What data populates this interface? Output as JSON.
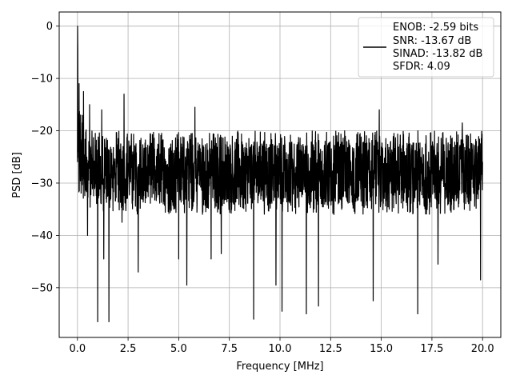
{
  "chart_data": {
    "type": "line",
    "title": "",
    "xlabel": "Frequency [MHz]",
    "ylabel": "PSD [dB]",
    "xlim": [
      -0.9,
      20.9
    ],
    "ylim": [
      -59.5,
      2.7
    ],
    "x_ticks": [
      0.0,
      2.5,
      5.0,
      7.5,
      10.0,
      12.5,
      15.0,
      17.5,
      20.0
    ],
    "x_tick_labels": [
      "0.0",
      "2.5",
      "5.0",
      "7.5",
      "10.0",
      "12.5",
      "15.0",
      "17.5",
      "20.0"
    ],
    "y_ticks": [
      0,
      -10,
      -20,
      -30,
      -40,
      -50
    ],
    "y_tick_labels": [
      "0",
      "−10",
      "−20",
      "−30",
      "−40",
      "−50"
    ],
    "grid": true,
    "legend_position": "top-right",
    "legend_lines": [
      "ENOB: -2.59 bits",
      "SNR: -13.67 dB",
      "SINAD: -13.82 dB",
      "SFDR: 4.09"
    ],
    "line_color": "#000000",
    "series": [
      {
        "label_lines": [
          "ENOB: -2.59 bits",
          "SNR: -13.67 dB",
          "SINAD: -13.82 dB",
          "SFDR: 4.09"
        ],
        "x_range": [
          0.0,
          20.0
        ],
        "peaks": [
          [
            0.0,
            0.0
          ],
          [
            0.04,
            -4.5
          ],
          [
            0.08,
            -11.0
          ],
          [
            0.15,
            -17.0
          ],
          [
            0.3,
            -12.5
          ],
          [
            0.6,
            -15.0
          ],
          [
            1.2,
            -16.0
          ],
          [
            2.3,
            -13.0
          ],
          [
            5.8,
            -15.5
          ],
          [
            14.9,
            -16.0
          ],
          [
            19.0,
            -18.5
          ]
        ],
        "dips": [
          [
            0.5,
            -40.0
          ],
          [
            1.0,
            -56.5
          ],
          [
            1.3,
            -44.5
          ],
          [
            1.55,
            -56.5
          ],
          [
            2.2,
            -37.5
          ],
          [
            3.0,
            -47.0
          ],
          [
            5.0,
            -44.5
          ],
          [
            5.4,
            -49.5
          ],
          [
            6.6,
            -44.5
          ],
          [
            7.1,
            -43.5
          ],
          [
            8.7,
            -56.0
          ],
          [
            9.8,
            -49.5
          ],
          [
            10.1,
            -54.5
          ],
          [
            11.3,
            -55.0
          ],
          [
            11.9,
            -53.5
          ],
          [
            14.6,
            -52.5
          ],
          [
            16.8,
            -55.0
          ],
          [
            17.8,
            -45.5
          ],
          [
            19.9,
            -48.5
          ]
        ],
        "typical_upper_envelope": -20,
        "typical_lower_envelope": -36
      }
    ]
  }
}
